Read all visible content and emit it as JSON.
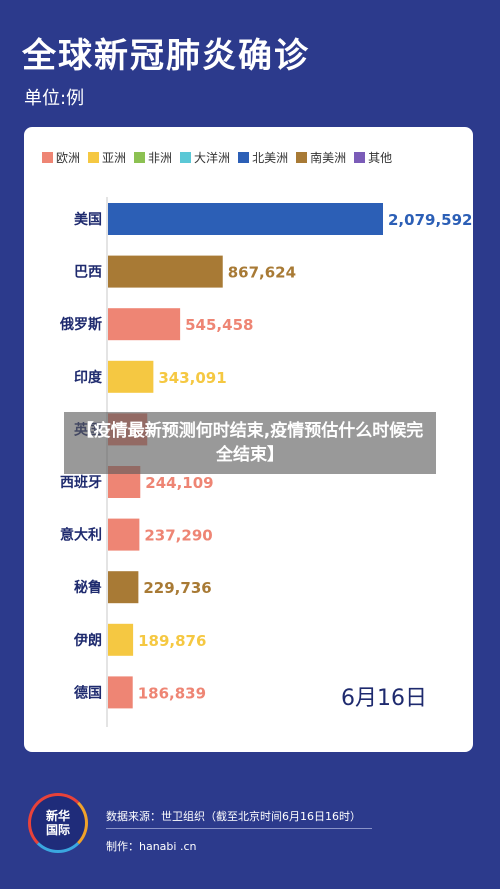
{
  "page": {
    "title": "全球新冠肺炎确诊",
    "unit": "单位:例",
    "overlay_text": "【疫情最新预测何时结束,疫情预估什么时候完全结束】",
    "logo_text": "新华国际",
    "source": "数据来源：世卫组织（截至北京时间6月16日16时）",
    "maker": "制作：hanabi .cn"
  },
  "legend": [
    {
      "label": "欧洲",
      "color": "#ee8574"
    },
    {
      "label": "亚洲",
      "color": "#f5c842"
    },
    {
      "label": "非洲",
      "color": "#8cc152"
    },
    {
      "label": "大洋洲",
      "color": "#5bc8d6"
    },
    {
      "label": "北美洲",
      "color": "#2c5fb6"
    },
    {
      "label": "南美洲",
      "color": "#a87a35"
    },
    {
      "label": "其他",
      "color": "#7b5cb8"
    }
  ],
  "chart_data": {
    "type": "bar",
    "orientation": "horizontal",
    "title": "全球新冠肺炎确诊",
    "unit": "单位:例",
    "date_label": "6月16日",
    "categories": [
      "美国",
      "巴西",
      "俄罗斯",
      "印度",
      "英国",
      "西班牙",
      "意大利",
      "秘鲁",
      "伊朗",
      "德国"
    ],
    "values": [
      2079592,
      867624,
      545458,
      343091,
      296861,
      244109,
      237290,
      229736,
      189876,
      186839
    ],
    "value_labels": [
      "2,079,592",
      "867,624",
      "545,458",
      "343,091",
      "",
      "244,109",
      "237,290",
      "229,736",
      "189,876",
      "186,839"
    ],
    "region": [
      "北美洲",
      "南美洲",
      "欧洲",
      "亚洲",
      "欧洲",
      "欧洲",
      "欧洲",
      "南美洲",
      "亚洲",
      "欧洲"
    ],
    "xlim": [
      0,
      2079592
    ],
    "grid": false,
    "legend_position": "top"
  }
}
